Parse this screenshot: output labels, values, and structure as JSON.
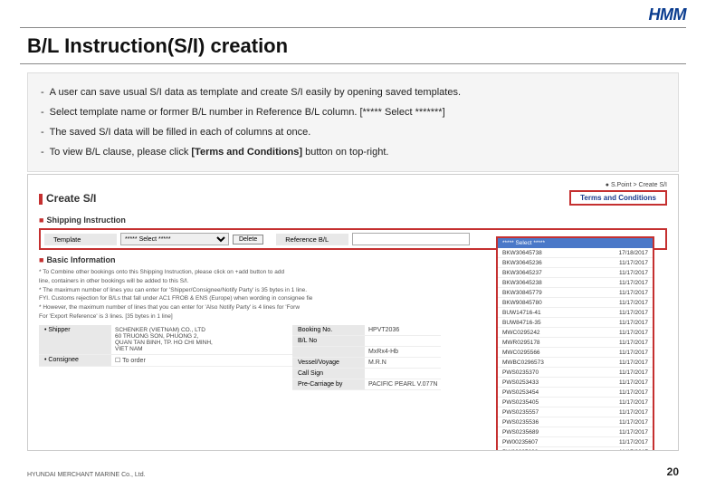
{
  "logo": "HMM",
  "title": "B/L Instruction(S/I) creation",
  "bullets": [
    {
      "text": "A user can save usual S/I data as template and create S/I easily by opening saved templates."
    },
    {
      "text": "Select template name or former B/L number in Reference B/L column. [***** Select *******]"
    },
    {
      "text": "The saved S/I data will be filled in each of columns at once."
    },
    {
      "prefix": "To view B/L clause, please click ",
      "bold": "[Terms and Conditions]",
      "suffix": " button on top-right."
    }
  ],
  "screenshot": {
    "breadcrumb": "● S.Point > Create S/I",
    "terms_button": "Terms and Conditions",
    "section_create": "Create S/I",
    "section_shipping": "Shipping Instruction",
    "template_label": "Template",
    "template_value": "***** Select *****",
    "delete_label": "Delete",
    "reference_label": "Reference B/L",
    "section_basic": "Basic Information",
    "basic_lines": [
      "* To Combine other bookings onto this Shipping Instruction, please click on +add button to add",
      "  line, containers in other bookings will be added to this S/I.",
      "* The maximum number of lines you can enter for 'Shipper/Consignee/Notify Party' is 35 bytes in 1 line.",
      "  FYI. Customs rejection for B/Ls that fall under AC1 FROB & ENS (Europe) when wording in consignee fie",
      "* However, the maximum number of lines that you can enter for 'Also Notify Party' is 4 lines for 'Forw",
      "  For 'Export Reference' is 3 lines. [35 bytes in 1 line]"
    ],
    "shipper_label": "Shipper",
    "shipper_value": "SCHENKER (VIETNAM) CO., LTD\n60 TRUONG SON, PHUONG 2,\nQUAN TAN BINH, TP. HO CHI MINH,\nVIET NAM",
    "consignee_label": "Consignee",
    "toorder_label": "To order",
    "right_rows": [
      {
        "label": "Booking No.",
        "value": "HPVT2036"
      },
      {
        "label": "B/L No",
        "value": ""
      },
      {
        "label": "",
        "value": "MxRx4-Hb"
      },
      {
        "label": "Vessel/Voyage",
        "value": "M.R.N"
      },
      {
        "label": "Call Sign",
        "value": ""
      },
      {
        "label": "Pre-Carriage by",
        "value": "PACIFIC PEARL V.077N"
      }
    ],
    "dropdown": {
      "head": "***** Select *****",
      "items": [
        {
          "id": "BKW30645738",
          "date": "17/18/2017"
        },
        {
          "id": "BKW30645236",
          "date": "11/17/2017"
        },
        {
          "id": "BKW30645237",
          "date": "11/17/2017"
        },
        {
          "id": "BKW30645238",
          "date": "11/17/2017"
        },
        {
          "id": "BKW30845779",
          "date": "11/17/2017"
        },
        {
          "id": "BKW90845780",
          "date": "11/17/2017"
        },
        {
          "id": "BUW14716-41",
          "date": "11/17/2017"
        },
        {
          "id": "BUW84716-35",
          "date": "11/17/2017"
        },
        {
          "id": "MWC0295242",
          "date": "11/17/2017"
        },
        {
          "id": "MWR0295178",
          "date": "11/17/2017"
        },
        {
          "id": "MWC0295566",
          "date": "11/17/2017"
        },
        {
          "id": "MWBC0296573",
          "date": "11/17/2017"
        },
        {
          "id": "PWS0235370",
          "date": "11/17/2017"
        },
        {
          "id": "PWS0253433",
          "date": "11/17/2017"
        },
        {
          "id": "PWS0253454",
          "date": "11/17/2017"
        },
        {
          "id": "PWS0235405",
          "date": "11/17/2017"
        },
        {
          "id": "PWS0235557",
          "date": "11/17/2017"
        },
        {
          "id": "PWS0235536",
          "date": "11/17/2017"
        },
        {
          "id": "PWS0235689",
          "date": "11/17/2017"
        },
        {
          "id": "PW00235607",
          "date": "11/17/2017"
        },
        {
          "id": "PW00235608",
          "date": "11/17/2017"
        },
        {
          "id": "PW30235687",
          "date": "11/17/2017"
        },
        {
          "id": "PW30235744",
          "date": "11/17/2017"
        }
      ]
    }
  },
  "footer_company": "HYUNDAI MERCHANT MARINE Co., Ltd.",
  "page_number": "20"
}
